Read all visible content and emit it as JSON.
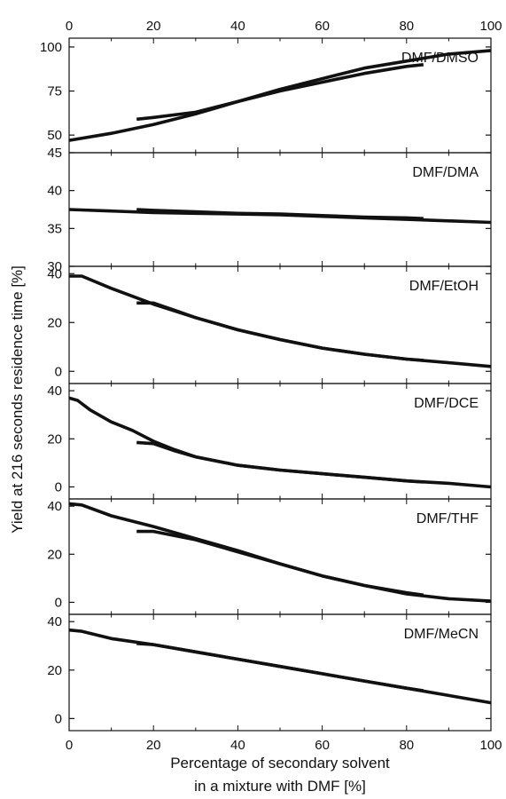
{
  "chart_data": {
    "type": "line",
    "ylabel": "Yield at 216 seconds residence time [%]",
    "xlabel_lines": [
      "Percentage of secondary solvent",
      "in a mixture with DMF [%]"
    ],
    "xlim": [
      0,
      100
    ],
    "x_ticks": [
      "0",
      "20",
      "40",
      "60",
      "80",
      "100"
    ],
    "line_color": "#111111",
    "panels": [
      {
        "label": "DMF/DMSO",
        "ylim": [
          40,
          105
        ],
        "yticks": [
          "50",
          "75",
          "100"
        ],
        "ytick_values": [
          50,
          75,
          100
        ],
        "series": [
          {
            "x": [
              0,
              10,
              20,
              30,
              40,
              50,
              60,
              70,
              80,
              90,
              100
            ],
            "y": [
              47,
              51,
              56,
              62,
              69,
              76,
              82,
              88,
              92,
              96,
              98
            ]
          },
          {
            "x": [
              16,
              20,
              30,
              40,
              50,
              60,
              70,
              80,
              84
            ],
            "y": [
              59,
              60,
              63,
              69,
              75,
              80,
              85,
              89,
              90
            ]
          }
        ]
      },
      {
        "label": "DMF/DMA",
        "ylim": [
          30,
          45
        ],
        "yticks": [
          "30",
          "35",
          "40",
          "45"
        ],
        "ytick_values": [
          30,
          35,
          40,
          45
        ],
        "series": [
          {
            "x": [
              0,
              10,
              20,
              30,
              40,
              50,
              60,
              70,
              80,
              90,
              100
            ],
            "y": [
              37.5,
              37.3,
              37.1,
              37.0,
              36.9,
              36.8,
              36.6,
              36.4,
              36.2,
              36.0,
              35.8
            ]
          },
          {
            "x": [
              16,
              20,
              30,
              40,
              50,
              60,
              70,
              80,
              84
            ],
            "y": [
              37.5,
              37.4,
              37.2,
              37.0,
              36.9,
              36.7,
              36.5,
              36.4,
              36.3
            ]
          }
        ]
      },
      {
        "label": "DMF/EtOH",
        "ylim": [
          -5,
          43
        ],
        "yticks": [
          "0",
          "20",
          "40"
        ],
        "ytick_values": [
          0,
          20,
          40
        ],
        "series": [
          {
            "x": [
              0,
              3,
              10,
              20,
              30,
              40,
              50,
              60,
              70,
              80,
              90,
              100
            ],
            "y": [
              39,
              39,
              34,
              27.5,
              22,
              17,
              13,
              9.5,
              7,
              5,
              3.5,
              2
            ]
          },
          {
            "x": [
              16,
              20,
              25,
              30,
              40,
              50,
              60,
              70,
              80,
              84
            ],
            "y": [
              28,
              28,
              25,
              22,
              17,
              13,
              9.5,
              7,
              5,
              4.5
            ]
          }
        ]
      },
      {
        "label": "DMF/DCE",
        "ylim": [
          -5,
          43
        ],
        "yticks": [
          "0",
          "20",
          "40"
        ],
        "ytick_values": [
          0,
          20,
          40
        ],
        "series": [
          {
            "x": [
              0,
              2,
              5,
              10,
              15,
              20,
              25,
              30,
              40,
              50,
              60,
              70,
              80,
              90,
              100
            ],
            "y": [
              37,
              36,
              32,
              27,
              23.5,
              19,
              15.5,
              12.5,
              9,
              7,
              5.5,
              4,
              2.5,
              1.5,
              0
            ]
          },
          {
            "x": [
              16,
              20,
              25,
              30,
              40,
              50,
              60,
              70,
              80,
              84
            ],
            "y": [
              18.5,
              18,
              15,
              12.5,
              9,
              7,
              5.5,
              4,
              2.5,
              2
            ]
          }
        ]
      },
      {
        "label": "DMF/THF",
        "ylim": [
          -5,
          43
        ],
        "yticks": [
          "0",
          "20",
          "40"
        ],
        "ytick_values": [
          0,
          20,
          40
        ],
        "series": [
          {
            "x": [
              0,
              3,
              10,
              20,
              30,
              40,
              50,
              60,
              70,
              80,
              90,
              100
            ],
            "y": [
              41,
              40.5,
              36,
              31.5,
              26.5,
              21.5,
              16,
              11,
              7,
              3.5,
              1.5,
              0.5
            ]
          },
          {
            "x": [
              16,
              20,
              30,
              40,
              50,
              60,
              70,
              80,
              84
            ],
            "y": [
              29.5,
              29.5,
              26,
              21,
              16,
              11,
              7,
              4,
              3
            ]
          }
        ]
      },
      {
        "label": "DMF/MeCN",
        "ylim": [
          -5,
          43
        ],
        "yticks": [
          "0",
          "20",
          "40"
        ],
        "ytick_values": [
          0,
          20,
          40
        ],
        "series": [
          {
            "x": [
              0,
              3,
              10,
              20,
              30,
              40,
              50,
              60,
              70,
              80,
              90,
              100
            ],
            "y": [
              36.5,
              36,
              33,
              30.5,
              27.5,
              24.5,
              21.5,
              18.5,
              15.5,
              12.5,
              9.5,
              6.5
            ]
          },
          {
            "x": [
              16,
              20,
              30,
              40,
              50,
              60,
              70,
              80,
              84
            ],
            "y": [
              31,
              30.5,
              27.5,
              24.5,
              21.5,
              18.5,
              15.5,
              12.5,
              11.5
            ]
          }
        ]
      }
    ]
  }
}
